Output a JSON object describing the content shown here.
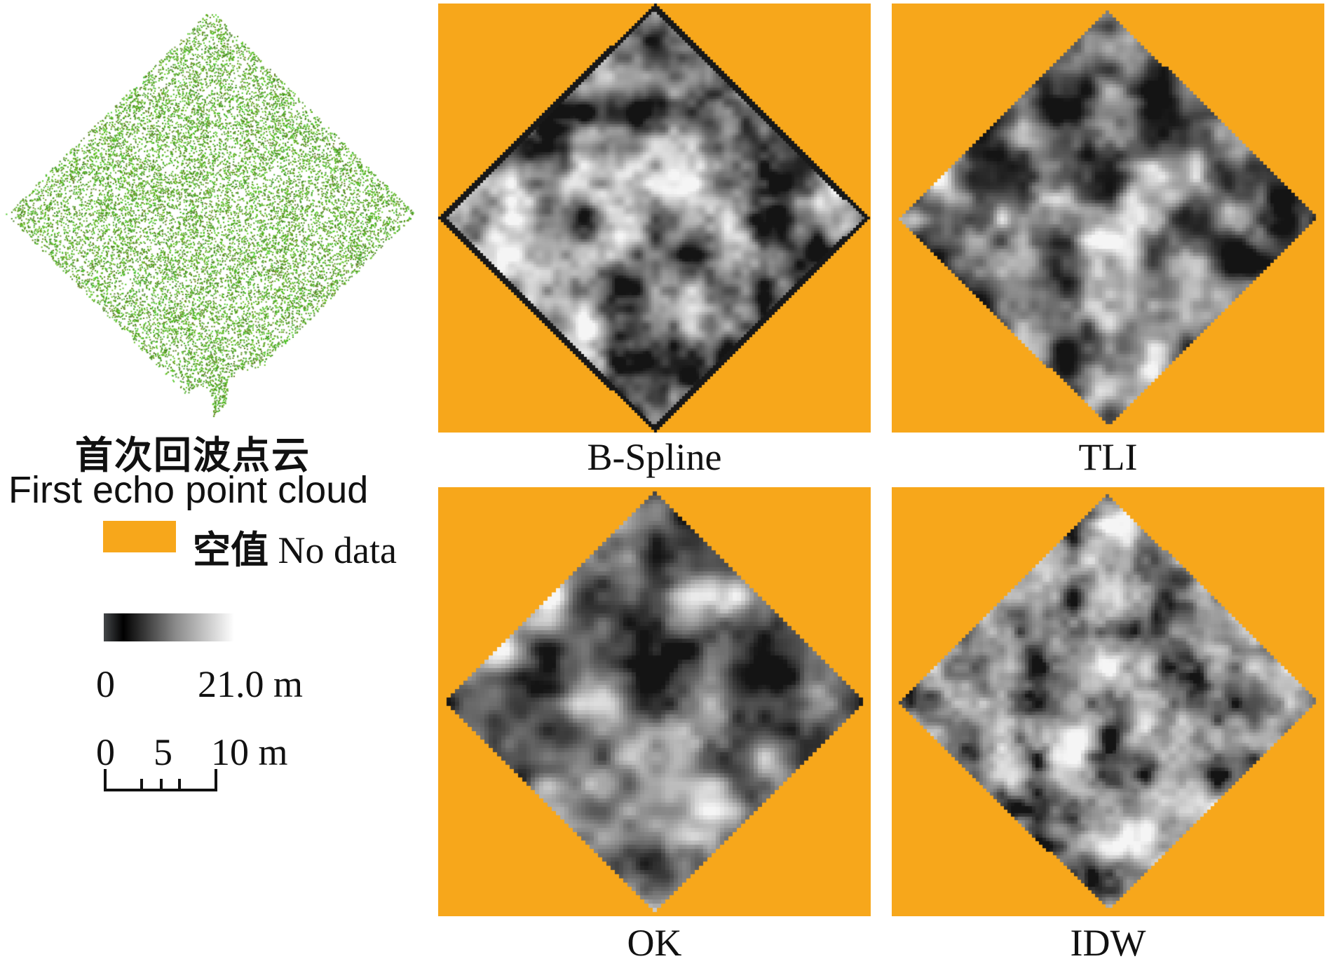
{
  "point_cloud": {
    "title_zh": "首次回波点云",
    "title_en": "First echo point cloud",
    "color": "#5cbf2a"
  },
  "legend": {
    "nodata_zh": "空值",
    "nodata_en": "No data",
    "nodata_color": "#f7a71b",
    "ramp_min": "0",
    "ramp_max": "21.0 m",
    "scale_ticks": [
      "0",
      "5",
      "10 m"
    ]
  },
  "panels": [
    {
      "id": "bspline",
      "label": "B-Spline"
    },
    {
      "id": "tli",
      "label": "TLI"
    },
    {
      "id": "ok",
      "label": "OK"
    },
    {
      "id": "idw",
      "label": "IDW"
    }
  ]
}
